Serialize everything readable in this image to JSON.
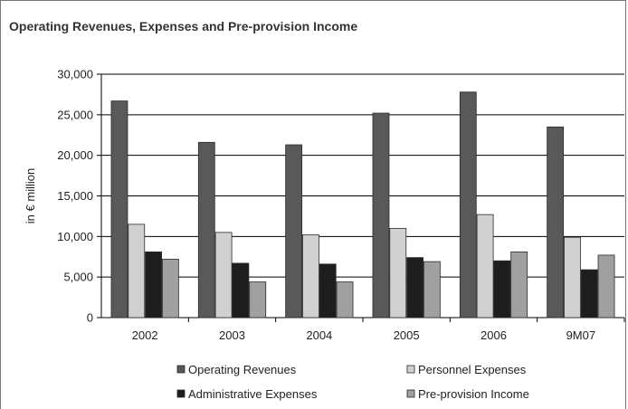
{
  "chart_data": {
    "type": "bar",
    "title": "Operating Revenues, Expenses and Pre-provision Income",
    "ylabel": "in € million",
    "xlabel": "",
    "ylim": [
      0,
      30000
    ],
    "yticks": [
      "0",
      "5,000",
      "10,000",
      "15,000",
      "20,000",
      "25,000",
      "30,000"
    ],
    "categories": [
      "2002",
      "2003",
      "2004",
      "2005",
      "2006",
      "9M07"
    ],
    "grid": true,
    "legend_position": "bottom",
    "series": [
      {
        "name": "Operating Revenues",
        "color": "#595959",
        "values": [
          26700,
          21600,
          21300,
          25200,
          27800,
          23500
        ]
      },
      {
        "name": "Personnel Expenses",
        "color": "#d0d0d0",
        "values": [
          11500,
          10500,
          10200,
          11000,
          12700,
          9900
        ]
      },
      {
        "name": "Administrative Expenses",
        "color": "#1e1e1e",
        "values": [
          8100,
          6700,
          6600,
          7400,
          7000,
          5900
        ]
      },
      {
        "name": "Pre-provision Income",
        "color": "#a0a0a0",
        "values": [
          7200,
          4400,
          4400,
          6900,
          8100,
          7700
        ]
      }
    ]
  }
}
